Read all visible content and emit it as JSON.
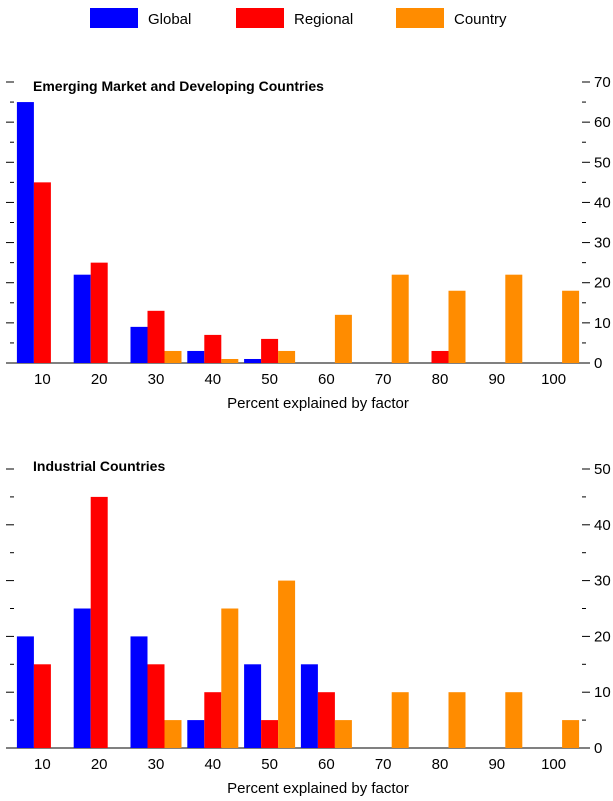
{
  "legend": [
    {
      "name": "Global",
      "color": "#0000ff"
    },
    {
      "name": "Regional",
      "color": "#ff0000"
    },
    {
      "name": "Country",
      "color": "#ff8c00"
    }
  ],
  "chart_data": [
    {
      "type": "bar",
      "title": "Emerging Market and Developing Countries",
      "xlabel": "Percent explained by factor",
      "ylabel": "",
      "categories": [
        "10",
        "20",
        "30",
        "40",
        "50",
        "60",
        "70",
        "80",
        "90",
        "100"
      ],
      "ylim": [
        0,
        70
      ],
      "yticks": [
        0,
        10,
        20,
        30,
        40,
        50,
        60,
        70
      ],
      "series": [
        {
          "name": "Global",
          "color": "#0000ff",
          "values": [
            65,
            22,
            9,
            3,
            1,
            0,
            0,
            0,
            0,
            0
          ]
        },
        {
          "name": "Regional",
          "color": "#ff0000",
          "values": [
            45,
            25,
            13,
            7,
            6,
            0,
            0,
            3,
            0,
            0
          ]
        },
        {
          "name": "Country",
          "color": "#ff8c00",
          "values": [
            0,
            0,
            3,
            1,
            3,
            12,
            22,
            18,
            22,
            18
          ]
        }
      ],
      "grid": false,
      "legend_position": "top"
    },
    {
      "type": "bar",
      "title": "Industrial Countries",
      "xlabel": "Percent explained by factor",
      "ylabel": "",
      "categories": [
        "10",
        "20",
        "30",
        "40",
        "50",
        "60",
        "70",
        "80",
        "90",
        "100"
      ],
      "ylim": [
        0,
        50
      ],
      "yticks": [
        0,
        10,
        20,
        30,
        40,
        50
      ],
      "series": [
        {
          "name": "Global",
          "color": "#0000ff",
          "values": [
            20,
            25,
            20,
            5,
            15,
            15,
            0,
            0,
            0,
            0
          ]
        },
        {
          "name": "Regional",
          "color": "#ff0000",
          "values": [
            15,
            45,
            15,
            10,
            5,
            10,
            0,
            0,
            0,
            0
          ]
        },
        {
          "name": "Country",
          "color": "#ff8c00",
          "values": [
            0,
            0,
            5,
            25,
            30,
            5,
            10,
            10,
            10,
            5
          ]
        }
      ],
      "grid": false,
      "legend_position": "top"
    }
  ]
}
